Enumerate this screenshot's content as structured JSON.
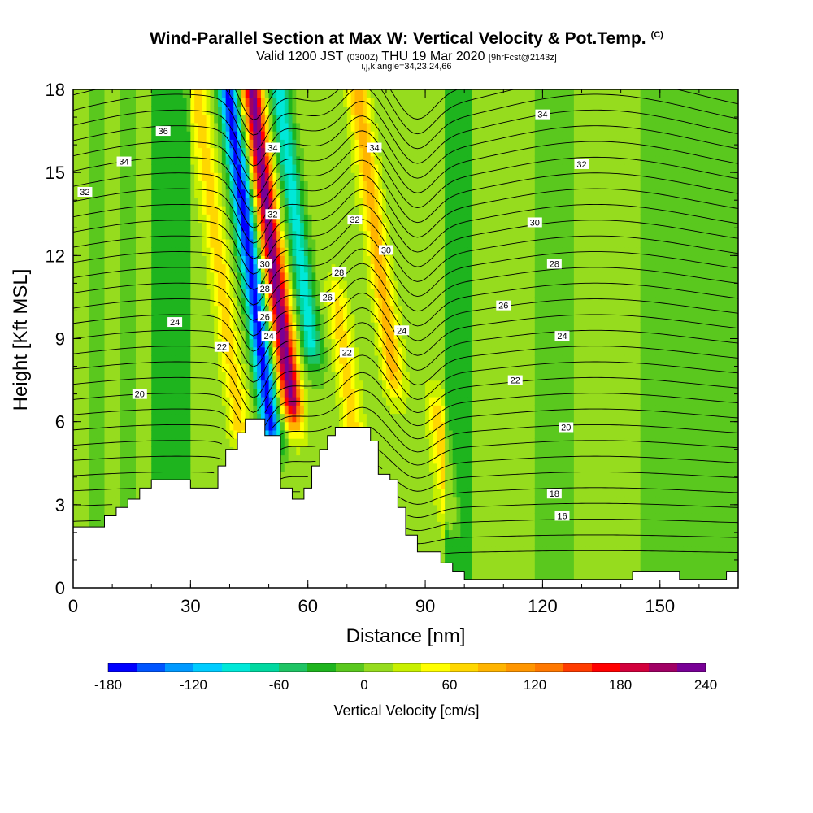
{
  "title": {
    "main": "Wind-Parallel Section at Max W: Vertical Velocity & Pot.Temp.",
    "tag": "(C)",
    "valid_prefix": "Valid 1200 JST",
    "valid_utc": "(0300Z)",
    "valid_date": "THU 19 Mar 2020",
    "valid_fcst": "[9hrFcst@2143z]",
    "grid_info": "i,j,k,angle=34,23,24,66"
  },
  "chart_data": {
    "type": "heatmap",
    "xlabel": "Distance [nm]",
    "ylabel": "Height [Kft MSL]",
    "xlim": [
      0,
      170
    ],
    "ylim": [
      0,
      18
    ],
    "x_ticks": [
      0,
      30,
      60,
      90,
      120,
      150
    ],
    "y_ticks": [
      0,
      3,
      6,
      9,
      12,
      15,
      18
    ],
    "colorbar": {
      "title": "Vertical Velocity [cm/s]",
      "range": [
        -180,
        240
      ],
      "step": 20,
      "tick_labels": [
        "-180",
        "-120",
        "-60",
        "0",
        "60",
        "120",
        "180",
        "240"
      ],
      "colors": [
        "#0000ff",
        "#0055ff",
        "#0099ff",
        "#00ccff",
        "#00e8d8",
        "#00d8a0",
        "#1ec464",
        "#1eb41e",
        "#5ac81e",
        "#96dc1e",
        "#c8f000",
        "#ffff00",
        "#ffd700",
        "#ffb400",
        "#ff9600",
        "#ff7800",
        "#ff3c00",
        "#ff0000",
        "#d2003c",
        "#a00064",
        "#780096"
      ]
    },
    "velocity_bands": [
      {
        "x": 45,
        "height_kft": [
          6,
          18
        ],
        "w_cms": -180
      },
      {
        "x": 51,
        "height_kft": [
          7,
          18
        ],
        "w_cms": 220
      },
      {
        "x": 58,
        "height_kft": [
          9,
          18
        ],
        "w_cms": -100
      },
      {
        "x": 37,
        "height_kft": [
          6,
          18
        ],
        "w_cms": 60
      },
      {
        "x": 66,
        "height_kft": [
          6,
          10
        ],
        "w_cms": 60
      },
      {
        "x": 78,
        "height_kft": [
          8,
          18
        ],
        "w_cms": 80
      },
      {
        "x": 88,
        "height_kft": [
          3,
          6
        ],
        "w_cms": 60
      }
    ],
    "theta_contours": [
      {
        "label": "16",
        "at": [
          [
            125,
            2.6
          ]
        ]
      },
      {
        "label": "18",
        "at": [
          [
            123,
            3.4
          ]
        ]
      },
      {
        "label": "20",
        "at": [
          [
            17,
            7.0
          ],
          [
            126,
            5.8
          ]
        ]
      },
      {
        "label": "22",
        "at": [
          [
            70,
            8.5
          ],
          [
            113,
            7.5
          ],
          [
            38,
            8.7
          ]
        ]
      },
      {
        "label": "24",
        "at": [
          [
            26,
            9.6
          ],
          [
            50,
            9.1
          ],
          [
            84,
            9.3
          ],
          [
            125,
            9.1
          ]
        ]
      },
      {
        "label": "26",
        "at": [
          [
            49,
            9.8
          ],
          [
            65,
            10.5
          ],
          [
            110,
            10.2
          ]
        ]
      },
      {
        "label": "28",
        "at": [
          [
            49,
            10.8
          ],
          [
            68,
            11.4
          ],
          [
            123,
            11.7
          ]
        ]
      },
      {
        "label": "30",
        "at": [
          [
            49,
            11.7
          ],
          [
            80,
            12.2
          ],
          [
            118,
            13.2
          ]
        ]
      },
      {
        "label": "32",
        "at": [
          [
            3,
            14.3
          ],
          [
            51,
            13.5
          ],
          [
            72,
            13.3
          ],
          [
            130,
            15.3
          ]
        ]
      },
      {
        "label": "34",
        "at": [
          [
            13,
            15.4
          ],
          [
            51,
            15.9
          ],
          [
            77,
            15.9
          ],
          [
            120,
            17.1
          ]
        ]
      },
      {
        "label": "36",
        "at": [
          [
            23,
            16.5
          ]
        ]
      }
    ],
    "terrain_kft": [
      [
        0,
        2.2
      ],
      [
        5,
        2.2
      ],
      [
        8,
        2.6
      ],
      [
        11,
        2.9
      ],
      [
        14,
        3.2
      ],
      [
        17,
        3.6
      ],
      [
        20,
        3.9
      ],
      [
        30,
        3.6
      ],
      [
        36,
        3.6
      ],
      [
        37,
        4.4
      ],
      [
        39,
        5.0
      ],
      [
        42,
        5.6
      ],
      [
        44,
        6.1
      ],
      [
        48,
        6.1
      ],
      [
        49,
        5.5
      ],
      [
        52,
        5.5
      ],
      [
        53,
        3.6
      ],
      [
        55,
        3.6
      ],
      [
        56,
        3.2
      ],
      [
        58,
        3.2
      ],
      [
        59,
        3.6
      ],
      [
        61,
        4.4
      ],
      [
        63,
        5.0
      ],
      [
        65,
        5.5
      ],
      [
        67,
        5.8
      ],
      [
        74,
        5.8
      ],
      [
        76,
        5.3
      ],
      [
        78,
        4.1
      ],
      [
        81,
        3.9
      ],
      [
        83,
        2.9
      ],
      [
        85,
        1.9
      ],
      [
        88,
        1.3
      ],
      [
        91,
        1.3
      ],
      [
        94,
        0.9
      ],
      [
        97,
        0.6
      ],
      [
        100,
        0.3
      ],
      [
        142,
        0.3
      ],
      [
        143,
        0.6
      ],
      [
        154,
        0.6
      ],
      [
        155,
        0.3
      ],
      [
        166,
        0.3
      ],
      [
        167,
        0.6
      ],
      [
        170,
        0.6
      ],
      [
        170,
        0
      ]
    ]
  }
}
